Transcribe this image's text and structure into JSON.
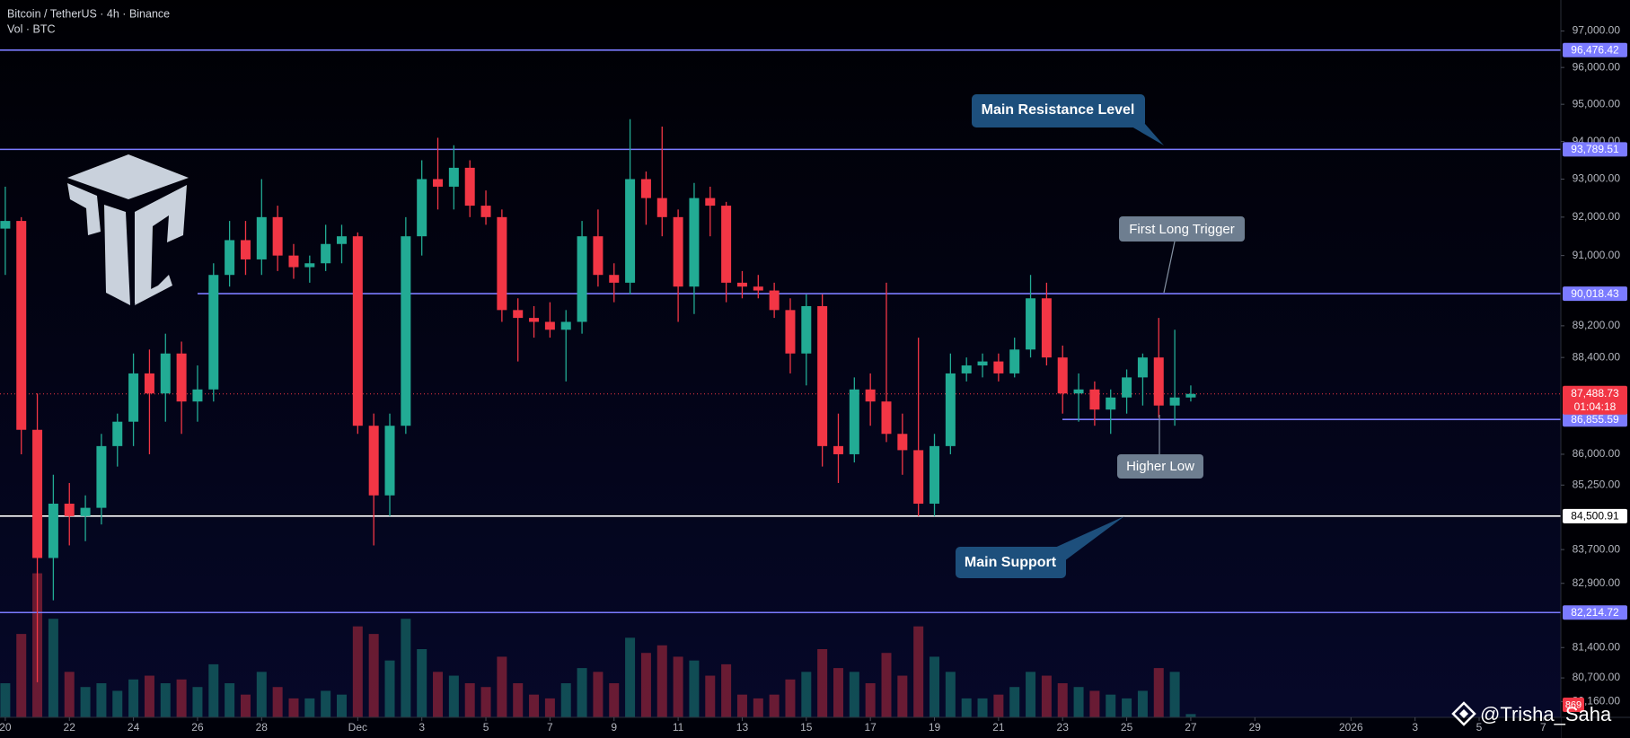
{
  "chart_data": {
    "type": "candlestick",
    "title": "Bitcoin / TetherUS · 4h · Binance",
    "log_scale": true,
    "ylim": [
      79800,
      97860
    ],
    "xlim": [
      -0.33,
      97.1
    ],
    "up_color": "#22ab94",
    "down_color": "#f23645",
    "candles": [
      [
        91700,
        92800,
        90500,
        91900
      ],
      [
        91900,
        92000,
        86000,
        86600
      ],
      [
        86600,
        87500,
        80600,
        83500
      ],
      [
        83500,
        85500,
        82500,
        84800
      ],
      [
        84800,
        85300,
        83800,
        84500
      ],
      [
        84500,
        85000,
        83900,
        84700
      ],
      [
        84700,
        86500,
        84300,
        86200
      ],
      [
        86200,
        87000,
        85700,
        86800
      ],
      [
        86800,
        88500,
        86200,
        88000
      ],
      [
        88000,
        88600,
        86000,
        87500
      ],
      [
        87500,
        89000,
        86800,
        88500
      ],
      [
        88500,
        88800,
        86500,
        87300
      ],
      [
        87300,
        88200,
        86800,
        87600
      ],
      [
        87600,
        90800,
        87300,
        90500
      ],
      [
        90500,
        91900,
        90200,
        91400
      ],
      [
        91400,
        91900,
        90500,
        90900
      ],
      [
        90900,
        93000,
        90500,
        92000
      ],
      [
        92000,
        92300,
        90600,
        91000
      ],
      [
        91000,
        91300,
        90400,
        90700
      ],
      [
        90700,
        91000,
        90300,
        90800
      ],
      [
        90800,
        91800,
        90600,
        91300
      ],
      [
        91300,
        91800,
        90800,
        91500
      ],
      [
        91500,
        91600,
        86500,
        86700
      ],
      [
        86700,
        87000,
        83800,
        85000
      ],
      [
        85000,
        87000,
        84500,
        86700
      ],
      [
        86700,
        92000,
        86500,
        91500
      ],
      [
        91500,
        93500,
        91000,
        93000
      ],
      [
        93000,
        94100,
        92200,
        92800
      ],
      [
        92800,
        93900,
        92200,
        93300
      ],
      [
        93300,
        93500,
        92000,
        92300
      ],
      [
        92300,
        92700,
        91800,
        92000
      ],
      [
        92000,
        92200,
        89300,
        89600
      ],
      [
        89600,
        89900,
        88300,
        89400
      ],
      [
        89400,
        89700,
        88900,
        89300
      ],
      [
        89300,
        89800,
        88900,
        89100
      ],
      [
        89100,
        89600,
        87800,
        89300
      ],
      [
        89300,
        91900,
        89000,
        91500
      ],
      [
        91500,
        92200,
        90200,
        90500
      ],
      [
        90500,
        90800,
        89800,
        90300
      ],
      [
        90300,
        94600,
        90000,
        93000
      ],
      [
        93000,
        93200,
        91800,
        92500
      ],
      [
        92500,
        94400,
        91500,
        92000
      ],
      [
        92000,
        92200,
        89300,
        90200
      ],
      [
        90200,
        92900,
        89500,
        92500
      ],
      [
        92500,
        92800,
        91500,
        92300
      ],
      [
        92300,
        92400,
        89800,
        90300
      ],
      [
        90300,
        90600,
        89900,
        90200
      ],
      [
        90200,
        90500,
        89900,
        90100
      ],
      [
        90100,
        90300,
        89400,
        89600
      ],
      [
        89600,
        89900,
        88000,
        88500
      ],
      [
        88500,
        90000,
        87700,
        89700
      ],
      [
        89700,
        90000,
        85700,
        86200
      ],
      [
        86200,
        87000,
        85300,
        86000
      ],
      [
        86000,
        87900,
        85800,
        87600
      ],
      [
        87600,
        88000,
        86700,
        87300
      ],
      [
        87300,
        90300,
        86300,
        86500
      ],
      [
        86500,
        87000,
        85500,
        86100
      ],
      [
        86100,
        88900,
        84500,
        84800
      ],
      [
        84800,
        86500,
        84500,
        86200
      ],
      [
        86200,
        88500,
        86000,
        88000
      ],
      [
        88000,
        88400,
        87800,
        88200
      ],
      [
        88200,
        88500,
        87900,
        88300
      ],
      [
        88300,
        88500,
        87800,
        88000
      ],
      [
        88000,
        88900,
        87900,
        88600
      ],
      [
        88600,
        90500,
        88400,
        89900
      ],
      [
        89900,
        90300,
        88200,
        88400
      ],
      [
        88400,
        88700,
        87000,
        87500
      ],
      [
        87500,
        88000,
        86800,
        87600
      ],
      [
        87600,
        87800,
        86700,
        87100
      ],
      [
        87100,
        87600,
        86500,
        87400
      ],
      [
        87400,
        88100,
        87000,
        87900
      ],
      [
        87900,
        88500,
        87200,
        88400
      ],
      [
        88400,
        89400,
        86900,
        87200
      ],
      [
        87200,
        89100,
        86700,
        87400
      ],
      [
        87400,
        87700,
        87300,
        87488.73
      ]
    ],
    "volume": {
      "name": "Vol · BTC",
      "ylim": [
        0,
        45000
      ],
      "values": [
        9000,
        22000,
        38000,
        26000,
        12000,
        8000,
        9000,
        7000,
        10000,
        11000,
        9000,
        10000,
        8000,
        14000,
        9000,
        6000,
        12000,
        8000,
        5000,
        5000,
        7000,
        6000,
        24000,
        22000,
        15000,
        26000,
        18000,
        12000,
        11000,
        9000,
        8000,
        16000,
        9000,
        6000,
        5000,
        9000,
        13000,
        12000,
        9000,
        21000,
        17000,
        19000,
        16000,
        15000,
        11000,
        14000,
        6000,
        5000,
        6000,
        10000,
        12000,
        18000,
        13000,
        12000,
        9000,
        17000,
        11000,
        24000,
        16000,
        12000,
        5000,
        5000,
        6000,
        8000,
        12000,
        11000,
        9000,
        8000,
        7000,
        6000,
        5000,
        7000,
        13000,
        12000,
        869
      ]
    },
    "xticks": [
      {
        "value": 0,
        "label": "20"
      },
      {
        "value": 4,
        "label": "22"
      },
      {
        "value": 8,
        "label": "24"
      },
      {
        "value": 12,
        "label": "26"
      },
      {
        "value": 16,
        "label": "28"
      },
      {
        "value": 22,
        "label": "Dec"
      },
      {
        "value": 26,
        "label": "3"
      },
      {
        "value": 30,
        "label": "5"
      },
      {
        "value": 34,
        "label": "7"
      },
      {
        "value": 38,
        "label": "9"
      },
      {
        "value": 42,
        "label": "11"
      },
      {
        "value": 46,
        "label": "13"
      },
      {
        "value": 50,
        "label": "15"
      },
      {
        "value": 54,
        "label": "17"
      },
      {
        "value": 58,
        "label": "19"
      },
      {
        "value": 62,
        "label": "21"
      },
      {
        "value": 66,
        "label": "23"
      },
      {
        "value": 70,
        "label": "25"
      },
      {
        "value": 74,
        "label": "27"
      },
      {
        "value": 78,
        "label": "29"
      },
      {
        "value": 84,
        "label": "2026"
      },
      {
        "value": 88,
        "label": "3"
      },
      {
        "value": 92,
        "label": "5"
      },
      {
        "value": 96,
        "label": "7"
      }
    ],
    "yticks": [
      {
        "value": 97000,
        "label": "97,000.00"
      },
      {
        "value": 96000,
        "label": "96,000.00"
      },
      {
        "value": 95000,
        "label": "95,000.00"
      },
      {
        "value": 94000,
        "label": "94,000.00"
      },
      {
        "value": 93000,
        "label": "93,000.00"
      },
      {
        "value": 92000,
        "label": "92,000.00"
      },
      {
        "value": 91000,
        "label": "91,000.00"
      },
      {
        "value": 89200,
        "label": "89,200.00"
      },
      {
        "value": 88400,
        "label": "88,400.00"
      },
      {
        "value": 86000,
        "label": "86,000.00"
      },
      {
        "value": 85250,
        "label": "85,250.00"
      },
      {
        "value": 83700,
        "label": "83,700.00"
      },
      {
        "value": 82900,
        "label": "82,900.00"
      },
      {
        "value": 81400,
        "label": "81,400.00"
      },
      {
        "value": 80700,
        "label": "80,700.00"
      },
      {
        "value": 80160,
        "label": "80,160.00"
      }
    ],
    "levels": [
      {
        "value": 96476.42,
        "label": "96,476.42",
        "color": "#7b7bff"
      },
      {
        "value": 93789.51,
        "label": "93,789.51",
        "color": "#7b7bff"
      },
      {
        "value": 90018.43,
        "label": "90,018.43",
        "color": "#7b7bff"
      },
      {
        "value": 86855.59,
        "label": "86,855.59",
        "color": "#7b7bff"
      },
      {
        "value": 84500.91,
        "label": "84,500.91",
        "color": "#ffffff"
      },
      {
        "value": 82214.72,
        "label": "82,214.72",
        "color": "#7b7bff"
      }
    ],
    "last_price": {
      "value": 87488.73,
      "label": "87,488.73",
      "countdown": "01:04:18",
      "color": "#f23645"
    },
    "annotations": [
      "Main Resistance Level",
      "First Long Trigger",
      "Higher Low",
      "Main Support"
    ],
    "watermark": "@Trisha_Saha"
  }
}
